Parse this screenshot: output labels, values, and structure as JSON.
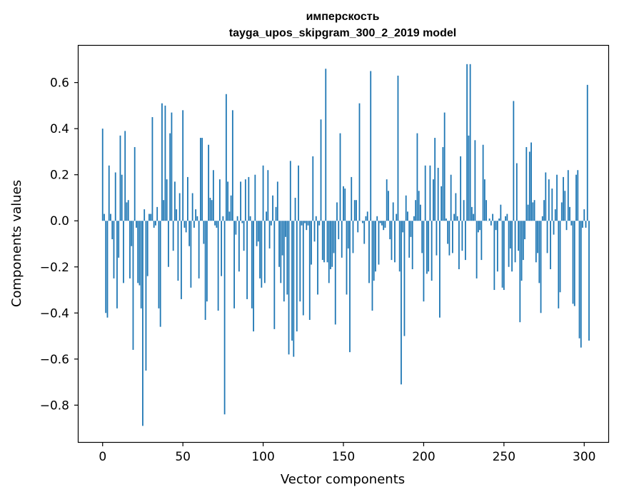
{
  "chart_data": {
    "type": "bar",
    "title": "имперскость",
    "subtitle": "tayga_upos_skipgram_300_2_2019 model",
    "xlabel": "Vector components",
    "ylabel": "Components values",
    "xlim": [
      -15,
      315
    ],
    "ylim": [
      -0.96,
      0.76
    ],
    "xticks": [
      0,
      50,
      100,
      150,
      200,
      250,
      300
    ],
    "yticks": [
      -0.8,
      -0.6,
      -0.4,
      -0.2,
      0.0,
      0.2,
      0.4,
      0.6
    ],
    "ytick_labels": [
      "−0.8",
      "−0.6",
      "−0.4",
      "−0.2",
      "0.0",
      "0.2",
      "0.4",
      "0.6"
    ],
    "grid": false,
    "bar_color": "#1f77b4",
    "values": [
      0.4,
      0.03,
      -0.4,
      -0.42,
      0.24,
      0.03,
      -0.08,
      -0.25,
      0.21,
      -0.38,
      -0.16,
      0.37,
      0.2,
      -0.27,
      0.39,
      0.08,
      0.09,
      -0.25,
      -0.11,
      -0.56,
      0.32,
      -0.03,
      -0.27,
      -0.28,
      -0.38,
      -0.89,
      0.05,
      -0.65,
      -0.24,
      0.03,
      0.03,
      0.45,
      -0.03,
      -0.02,
      0.06,
      -0.38,
      -0.46,
      0.51,
      0.09,
      0.5,
      0.18,
      -0.2,
      0.38,
      0.47,
      -0.13,
      0.17,
      0.05,
      -0.26,
      0.12,
      -0.34,
      0.48,
      -0.03,
      -0.05,
      0.19,
      -0.11,
      -0.29,
      0.12,
      -0.03,
      0.05,
      0.02,
      -0.25,
      0.36,
      0.36,
      -0.1,
      -0.43,
      -0.35,
      0.33,
      0.1,
      0.09,
      0.22,
      -0.02,
      -0.03,
      -0.39,
      0.18,
      -0.24,
      0.02,
      -0.84,
      0.55,
      0.17,
      0.04,
      0.11,
      0.48,
      -0.38,
      -0.06,
      0.02,
      -0.22,
      0.17,
      -0.01,
      -0.13,
      0.18,
      -0.34,
      0.19,
      0.02,
      -0.38,
      -0.48,
      0.2,
      -0.11,
      -0.09,
      -0.25,
      -0.29,
      0.24,
      -0.27,
      0.04,
      0.22,
      -0.12,
      -0.02,
      0.11,
      -0.47,
      0.06,
      0.17,
      -0.2,
      -0.27,
      -0.15,
      -0.35,
      -0.07,
      -0.32,
      -0.58,
      0.26,
      -0.52,
      -0.59,
      0.1,
      -0.48,
      0.24,
      -0.35,
      -0.02,
      -0.41,
      -0.01,
      -0.04,
      -0.02,
      -0.43,
      -0.19,
      0.28,
      -0.09,
      0.02,
      -0.32,
      -0.02,
      0.44,
      -0.17,
      -0.18,
      0.66,
      -0.18,
      -0.27,
      -0.21,
      -0.2,
      -0.14,
      -0.45,
      0.08,
      -0.08,
      0.38,
      -0.16,
      0.15,
      0.14,
      -0.32,
      -0.12,
      -0.57,
      0.19,
      -0.14,
      0.09,
      0.09,
      -0.05,
      0.51,
      0.0,
      -0.01,
      -0.1,
      0.02,
      0.04,
      -0.27,
      0.65,
      -0.39,
      -0.26,
      -0.22,
      0.02,
      -0.19,
      -0.01,
      -0.02,
      -0.04,
      -0.03,
      0.18,
      0.13,
      -0.08,
      -0.17,
      0.08,
      -0.18,
      0.03,
      0.63,
      -0.22,
      -0.71,
      -0.05,
      -0.5,
      0.11,
      0.04,
      -0.16,
      -0.07,
      -0.21,
      0.02,
      0.09,
      0.38,
      0.13,
      0.07,
      -0.14,
      -0.35,
      0.24,
      -0.23,
      -0.22,
      0.24,
      -0.26,
      0.18,
      0.36,
      -0.15,
      0.23,
      -0.42,
      0.15,
      0.32,
      0.47,
      0.01,
      -0.1,
      -0.15,
      0.2,
      -0.14,
      0.03,
      0.12,
      0.02,
      -0.21,
      0.28,
      -0.13,
      0.09,
      -0.17,
      0.68,
      0.37,
      0.68,
      0.06,
      0.03,
      0.35,
      -0.25,
      -0.05,
      -0.04,
      -0.17,
      0.33,
      0.18,
      0.09,
      0.0,
      0.01,
      -0.02,
      0.03,
      -0.3,
      -0.04,
      -0.22,
      0.01,
      0.07,
      -0.29,
      -0.3,
      0.02,
      0.03,
      -0.2,
      -0.12,
      -0.22,
      0.52,
      -0.18,
      0.25,
      -0.13,
      -0.44,
      -0.26,
      -0.17,
      -0.08,
      0.32,
      0.07,
      0.3,
      0.34,
      0.08,
      0.09,
      -0.18,
      -0.14,
      -0.27,
      -0.4,
      0.02,
      0.09,
      0.21,
      -0.14,
      0.18,
      -0.21,
      0.14,
      -0.06,
      0.05,
      0.2,
      -0.38,
      -0.31,
      0.08,
      0.19,
      0.13,
      -0.04,
      0.22,
      0.06,
      -0.02,
      -0.36,
      -0.37,
      0.2,
      0.22,
      -0.51,
      -0.55,
      -0.03,
      0.05,
      -0.03,
      0.59,
      -0.52
    ]
  }
}
